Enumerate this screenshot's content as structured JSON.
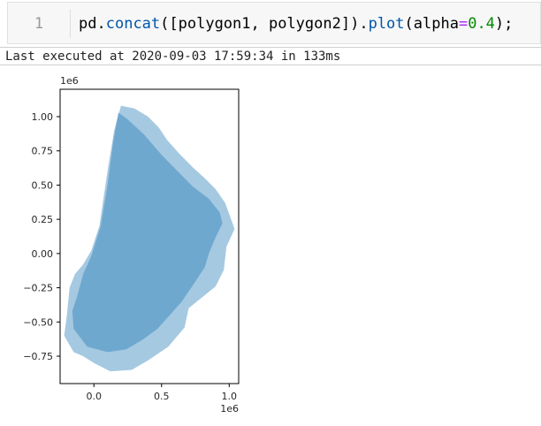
{
  "cell": {
    "prompt": "1",
    "code": {
      "t1": "pd",
      "t2": ".",
      "t3": "concat",
      "t4": "([polygon1, polygon2])",
      "t5": ".",
      "t6": "plot",
      "t7": "(alpha",
      "t8": "=",
      "t9": "0.4",
      "t10": ");"
    },
    "execution_status": "Last executed at 2020-09-03 17:59:34 in 133ms"
  },
  "colors": {
    "fill": "#1f77b4",
    "fill_alpha": 0.4,
    "axis": "#000000",
    "text": "#262626"
  },
  "chart_data": {
    "type": "area",
    "title": "",
    "xlabel": "",
    "ylabel": "",
    "x_offset_label": "1e6",
    "y_offset_label": "1e6",
    "xlim": [
      -0.25,
      1.07
    ],
    "ylim": [
      -0.95,
      1.2
    ],
    "xticks": [
      0.0,
      0.5,
      1.0
    ],
    "xtick_labels": [
      "0.0",
      "0.5",
      "1.0"
    ],
    "yticks": [
      1.0,
      0.75,
      0.5,
      0.25,
      0.0,
      -0.25,
      -0.5,
      -0.75
    ],
    "ytick_labels": [
      "1.00",
      "0.75",
      "0.50",
      "0.25",
      "0.00",
      "−0.25",
      "−0.50",
      "−0.75"
    ],
    "grid": false,
    "legend": "none",
    "series": [
      {
        "points": [
          [
            0.18,
            1.03
          ],
          [
            0.25,
            0.98
          ],
          [
            0.37,
            0.87
          ],
          [
            0.5,
            0.72
          ],
          [
            0.62,
            0.6
          ],
          [
            0.73,
            0.49
          ],
          [
            0.85,
            0.4
          ],
          [
            0.93,
            0.3
          ],
          [
            0.95,
            0.22
          ],
          [
            0.9,
            0.12
          ],
          [
            0.85,
            0.0
          ],
          [
            0.82,
            -0.1
          ],
          [
            0.74,
            -0.22
          ],
          [
            0.65,
            -0.35
          ],
          [
            0.56,
            -0.45
          ],
          [
            0.47,
            -0.55
          ],
          [
            0.36,
            -0.63
          ],
          [
            0.24,
            -0.7
          ],
          [
            0.1,
            -0.72
          ],
          [
            -0.05,
            -0.68
          ],
          [
            -0.15,
            -0.55
          ],
          [
            -0.16,
            -0.42
          ],
          [
            -0.12,
            -0.3
          ],
          [
            -0.08,
            -0.15
          ],
          [
            -0.02,
            -0.02
          ],
          [
            0.05,
            0.2
          ],
          [
            0.1,
            0.5
          ],
          [
            0.14,
            0.8
          ],
          [
            0.18,
            1.03
          ]
        ]
      },
      {
        "points": [
          [
            0.2,
            1.08
          ],
          [
            0.3,
            1.06
          ],
          [
            0.4,
            1.0
          ],
          [
            0.48,
            0.92
          ],
          [
            0.54,
            0.83
          ],
          [
            0.63,
            0.73
          ],
          [
            0.73,
            0.63
          ],
          [
            0.82,
            0.55
          ],
          [
            0.9,
            0.47
          ],
          [
            0.97,
            0.37
          ],
          [
            1.04,
            0.18
          ],
          [
            0.98,
            0.05
          ],
          [
            0.96,
            -0.12
          ],
          [
            0.9,
            -0.24
          ],
          [
            0.8,
            -0.32
          ],
          [
            0.7,
            -0.4
          ],
          [
            0.67,
            -0.54
          ],
          [
            0.55,
            -0.68
          ],
          [
            0.4,
            -0.78
          ],
          [
            0.28,
            -0.85
          ],
          [
            0.12,
            -0.86
          ],
          [
            0.0,
            -0.8
          ],
          [
            -0.08,
            -0.75
          ],
          [
            -0.15,
            -0.72
          ],
          [
            -0.22,
            -0.6
          ],
          [
            -0.2,
            -0.45
          ],
          [
            -0.18,
            -0.25
          ],
          [
            -0.14,
            -0.15
          ],
          [
            -0.08,
            -0.08
          ],
          [
            -0.02,
            0.02
          ],
          [
            0.04,
            0.2
          ],
          [
            0.1,
            0.6
          ],
          [
            0.15,
            0.9
          ],
          [
            0.2,
            1.08
          ]
        ]
      }
    ]
  }
}
